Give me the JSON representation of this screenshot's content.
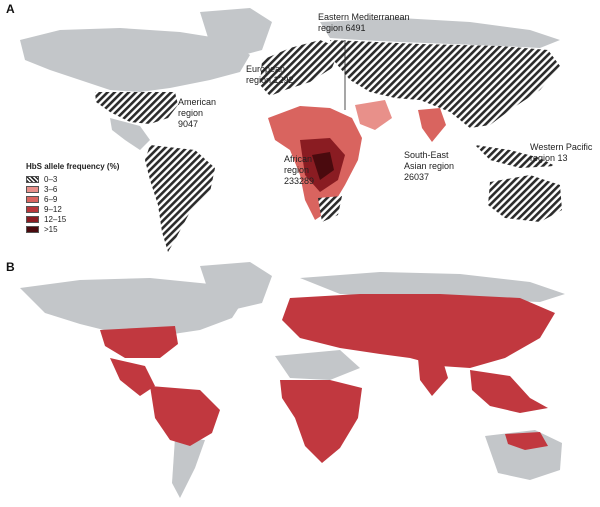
{
  "panels": {
    "a": {
      "letter": "A"
    },
    "b": {
      "letter": "B"
    }
  },
  "legend": {
    "title": "HbS allele frequency (%)",
    "items": [
      {
        "label": "0–3",
        "color": "hatched"
      },
      {
        "label": "3–6",
        "color": "#e8908a"
      },
      {
        "label": "6–9",
        "color": "#d9645f"
      },
      {
        "label": "9–12",
        "color": "#b8363a"
      },
      {
        "label": "12–15",
        "color": "#8a1c22"
      },
      {
        "label": ">15",
        "color": "#4a0a0e"
      }
    ]
  },
  "regions": {
    "american": "American\nregion\n9047",
    "european": "European\nregion 1292",
    "eastern_mediterranean": "Eastern Mediterranean\nregion 6491",
    "african": "African\nregion\n233289",
    "south_east_asian": "South-East\nAsian region\n26037",
    "western_pacific": "Western Pacific\nregion 13"
  },
  "colors": {
    "land_grey": "#c3c6c9",
    "hatch_dark": "#2b2b2b",
    "malaria_red": "#c1383f"
  }
}
